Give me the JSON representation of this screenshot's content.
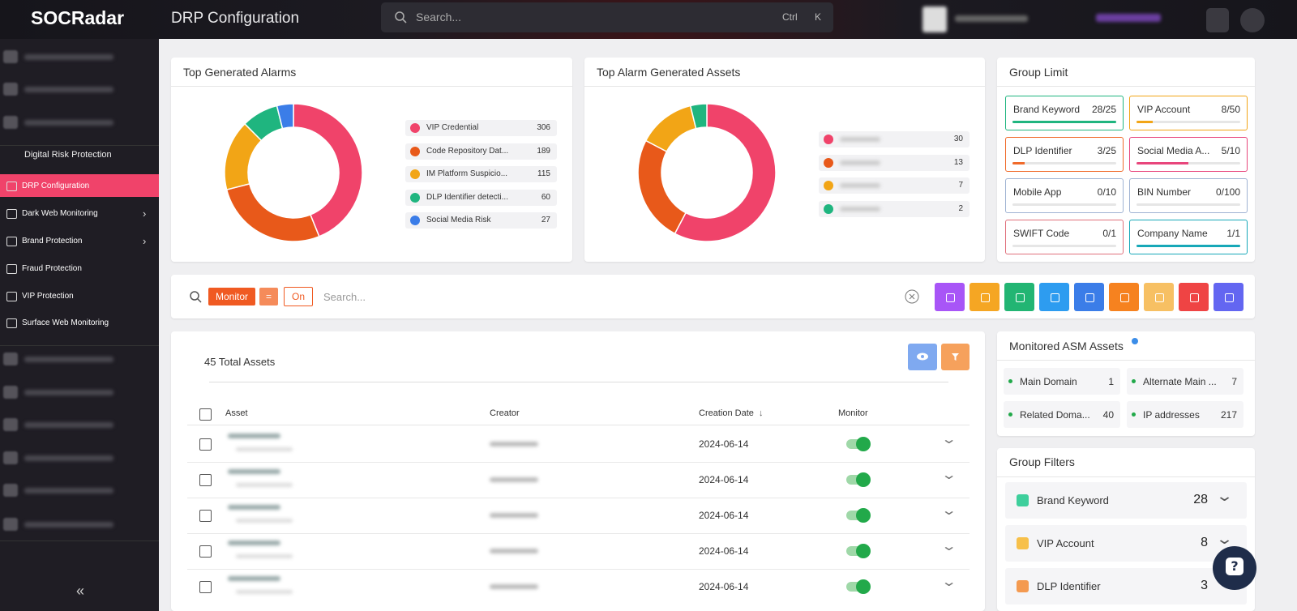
{
  "header": {
    "logo": "SOCRadar",
    "title": "DRP Configuration",
    "search_placeholder": "Search...",
    "shortcut_keys": [
      "Ctrl",
      "K"
    ]
  },
  "sidebar": {
    "section": "Digital Risk Protection",
    "items": [
      "DRP Configuration",
      "Dark Web Monitoring",
      "Brand Protection",
      "Fraud Protection",
      "VIP Protection",
      "Surface Web Monitoring"
    ]
  },
  "top_generated_alarms": {
    "type": "donut",
    "title": "Top Generated Alarms",
    "items": [
      {
        "label": "VIP Credential",
        "value": 306,
        "color": "#f0436a"
      },
      {
        "label": "Code Repository Dat...",
        "value": 189,
        "color": "#e8591a"
      },
      {
        "label": "IM Platform Suspicio...",
        "value": 115,
        "color": "#f2a516"
      },
      {
        "label": "DLP Identifier detecti...",
        "value": 60,
        "color": "#1fb57f"
      },
      {
        "label": "Social Media Risk",
        "value": 27,
        "color": "#3b7de8"
      }
    ]
  },
  "top_alarm_generated_assets": {
    "type": "donut",
    "title": "Top Alarm Generated Assets",
    "items": [
      {
        "value": 30,
        "color": "#f0436a"
      },
      {
        "value": 13,
        "color": "#e8591a"
      },
      {
        "value": 7,
        "color": "#f2a516"
      },
      {
        "value": 2,
        "color": "#1fb57f"
      }
    ]
  },
  "group_limit": {
    "title": "Group Limit",
    "items": [
      {
        "label": "Brand Keyword",
        "value_label": "28/25",
        "used": 28,
        "limit": 25,
        "color": "#1fb57f"
      },
      {
        "label": "VIP Account",
        "value_label": "8/50",
        "used": 8,
        "limit": 50,
        "color": "#f2a516"
      },
      {
        "label": "DLP Identifier",
        "value_label": "3/25",
        "used": 3,
        "limit": 25,
        "color": "#f06a2a"
      },
      {
        "label": "Social Media A...",
        "value_label": "5/10",
        "used": 5,
        "limit": 10,
        "color": "#e8467c"
      },
      {
        "label": "Mobile App",
        "value_label": "0/10",
        "used": 0,
        "limit": 10,
        "color": "#9fb3d3"
      },
      {
        "label": "BIN Number",
        "value_label": "0/100",
        "used": 0,
        "limit": 100,
        "color": "#9fb3d3"
      },
      {
        "label": "SWIFT Code",
        "value_label": "0/1",
        "used": 0,
        "limit": 1,
        "color": "#e0707c"
      },
      {
        "label": "Company Name",
        "value_label": "1/1",
        "used": 1,
        "limit": 1,
        "color": "#17a8b8"
      }
    ]
  },
  "filter_bar": {
    "field": "Monitor",
    "operator": "=",
    "value": "On",
    "search_placeholder": "Search..."
  },
  "assets_table": {
    "total": "45 Total Assets",
    "columns": [
      "Asset",
      "Creator",
      "Creation Date",
      "Monitor"
    ],
    "rows": [
      {
        "creation_date": "2024-06-14"
      },
      {
        "creation_date": "2024-06-14"
      },
      {
        "creation_date": "2024-06-14"
      },
      {
        "creation_date": "2024-06-14"
      },
      {
        "creation_date": "2024-06-14"
      }
    ]
  },
  "monitored_asm_assets": {
    "title": "Monitored ASM Assets",
    "items": [
      {
        "label": "Main Domain",
        "value": 1
      },
      {
        "label": "Alternate Main ...",
        "value": 7
      },
      {
        "label": "Related Doma...",
        "value": 40
      },
      {
        "label": "IP addresses",
        "value": 217
      }
    ]
  },
  "group_filters": {
    "title": "Group Filters",
    "items": [
      {
        "label": "Brand Keyword",
        "value": 28,
        "color": "#3ecf9c"
      },
      {
        "label": "VIP Account",
        "value": 8,
        "color": "#f7c04a"
      },
      {
        "label": "DLP Identifier",
        "value": 3,
        "color": "#f49a50"
      }
    ]
  }
}
